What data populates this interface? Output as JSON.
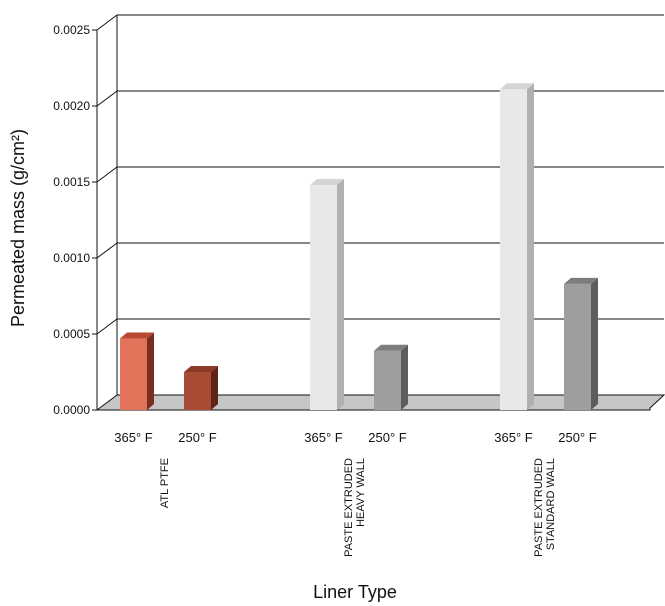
{
  "chart_data": {
    "type": "bar",
    "style": "3d",
    "xlabel": "Liner Type",
    "ylabel": "Permeated mass (g/cm²)",
    "ylim": [
      0,
      0.0025
    ],
    "yticks": [
      "0.0000",
      "0.0005",
      "0.0010",
      "0.0015",
      "0.0020",
      "0.0025"
    ],
    "grid": true,
    "groups": [
      {
        "name_lines": [
          "ATL PTFE"
        ],
        "bars": [
          {
            "label": "365° F",
            "value": 0.00047,
            "color": "#e2735a",
            "top": "#b94a32",
            "side": "#7a2e1e"
          },
          {
            "label": "250° F",
            "value": 0.00025,
            "color": "#a84c35",
            "top": "#8a3a26",
            "side": "#5e2517"
          }
        ]
      },
      {
        "name_lines": [
          "PASTE EXTRUDED",
          "HEAVY WALL"
        ],
        "bars": [
          {
            "label": "365° F",
            "value": 0.00148,
            "color": "#e8e8e8",
            "top": "#d4d4d4",
            "side": "#b0b0b0"
          },
          {
            "label": "250° F",
            "value": 0.00039,
            "color": "#9e9e9e",
            "top": "#7d7d7d",
            "side": "#5d5d5d"
          }
        ]
      },
      {
        "name_lines": [
          "PASTE EXTRUDED",
          "STANDARD WALL"
        ],
        "bars": [
          {
            "label": "365° F",
            "value": 0.00211,
            "color": "#e8e8e8",
            "top": "#d4d4d4",
            "side": "#b0b0b0"
          },
          {
            "label": "250° F",
            "value": 0.00083,
            "color": "#9e9e9e",
            "top": "#7d7d7d",
            "side": "#5d5d5d"
          }
        ]
      }
    ],
    "floor_color": "#c6c6c6"
  }
}
